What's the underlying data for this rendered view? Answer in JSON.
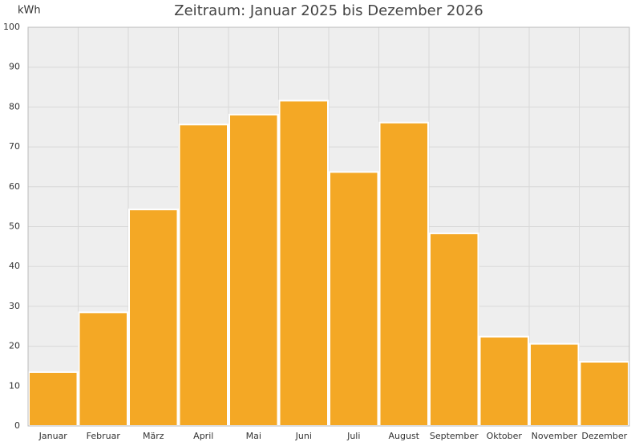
{
  "chart_data": {
    "type": "bar",
    "title": "Zeitraum: Januar 2025 bis Dezember 2026",
    "y_label": "kWh",
    "categories": [
      "Januar",
      "Februar",
      "März",
      "April",
      "Mai",
      "Juni",
      "Juli",
      "August",
      "September",
      "Oktober",
      "November",
      "Dezember"
    ],
    "values": [
      13.5,
      28.5,
      54.3,
      75.6,
      78.1,
      81.6,
      63.7,
      76.1,
      48.3,
      22.4,
      20.6,
      16.1
    ],
    "color": "#f4a825",
    "ylim": [
      0,
      100
    ],
    "yticks": [
      0,
      10,
      20,
      30,
      40,
      50,
      60,
      70,
      80,
      90,
      100
    ],
    "grid": true
  }
}
